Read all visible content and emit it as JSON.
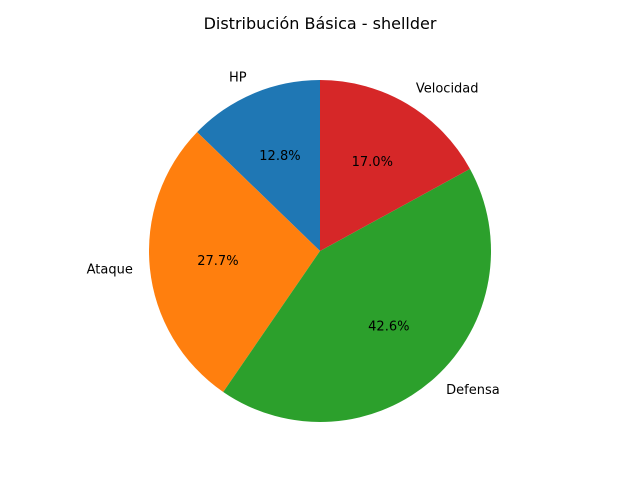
{
  "chart_data": {
    "type": "pie",
    "title": "Distribución Básica - shellder",
    "categories": [
      "HP",
      "Ataque",
      "Defensa",
      "Velocidad"
    ],
    "values": [
      30,
      65,
      100,
      40
    ],
    "percent_labels": [
      "12.8%",
      "27.7%",
      "42.6%",
      "17.0%"
    ],
    "colors": [
      "#1f77b4",
      "#ff7f0e",
      "#2ca02c",
      "#d62728"
    ],
    "start_angle_deg": 90,
    "direction": "counterclockwise"
  }
}
